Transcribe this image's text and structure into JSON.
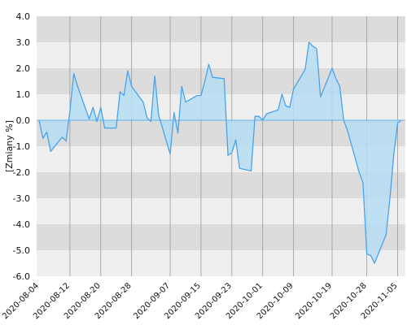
{
  "chart_data": {
    "type": "area",
    "ylabel": "[Zmiany %]",
    "ylim": [
      -6.0,
      4.0
    ],
    "y_ticks": [
      "4.0",
      "3.0",
      "2.0",
      "1.0",
      "0.0",
      "-1.0",
      "-2.0",
      "-3.0",
      "-4.0",
      "-5.0",
      "-6.0"
    ],
    "x_ticks": [
      "2020-08-04",
      "2020-08-12",
      "2020-08-20",
      "2020-08-28",
      "2020-09-07",
      "2020-09-15",
      "2020-09-23",
      "2020-10-01",
      "2020-10-09",
      "2020-10-19",
      "2020-10-28",
      "2020-11-05"
    ],
    "grid": "horizontal bands + vertical lines",
    "colors": {
      "line": "#4aa3ea",
      "fill": "#b5ddf2",
      "band_dark": "#dcdcdc",
      "band_light": "#efefef",
      "grid": "#9a9a9a"
    },
    "series": [
      {
        "x": [
          "2020-08-04",
          "2020-08-05",
          "2020-08-06",
          "2020-08-07",
          "2020-08-10",
          "2020-08-11",
          "2020-08-12",
          "2020-08-13",
          "2020-08-14",
          "2020-08-17",
          "2020-08-18",
          "2020-08-19",
          "2020-08-20",
          "2020-08-21",
          "2020-08-24",
          "2020-08-25",
          "2020-08-26",
          "2020-08-27",
          "2020-08-28",
          "2020-08-31",
          "2020-09-01",
          "2020-09-02",
          "2020-09-03",
          "2020-09-04",
          "2020-09-07",
          "2020-09-08",
          "2020-09-09",
          "2020-09-10",
          "2020-09-11",
          "2020-09-14",
          "2020-09-15",
          "2020-09-16",
          "2020-09-17",
          "2020-09-18",
          "2020-09-21",
          "2020-09-22",
          "2020-09-23",
          "2020-09-24",
          "2020-09-25",
          "2020-09-28",
          "2020-09-29",
          "2020-09-30",
          "2020-10-01",
          "2020-10-02",
          "2020-10-05",
          "2020-10-06",
          "2020-10-07",
          "2020-10-08",
          "2020-10-09",
          "2020-10-12",
          "2020-10-13",
          "2020-10-14",
          "2020-10-15",
          "2020-10-16",
          "2020-10-19",
          "2020-10-20",
          "2020-10-21",
          "2020-10-22",
          "2020-10-23",
          "2020-10-26",
          "2020-10-27",
          "2020-10-28",
          "2020-10-29",
          "2020-10-30",
          "2020-11-02",
          "2020-11-03",
          "2020-11-04",
          "2020-11-05",
          "2020-11-06"
        ],
        "values": [
          0.0,
          -0.7,
          -0.45,
          -1.2,
          -0.65,
          -0.8,
          0.35,
          1.8,
          1.3,
          0.05,
          0.5,
          -0.05,
          0.5,
          -0.3,
          -0.3,
          1.1,
          0.95,
          1.9,
          1.3,
          0.7,
          0.1,
          -0.05,
          1.7,
          0.2,
          -1.3,
          0.3,
          -0.5,
          1.3,
          0.7,
          0.95,
          0.95,
          1.5,
          2.15,
          1.65,
          1.6,
          -1.35,
          -1.25,
          -0.75,
          -1.85,
          -1.95,
          0.15,
          0.15,
          0.0,
          0.25,
          0.4,
          1.0,
          0.55,
          0.5,
          1.2,
          1.95,
          3.0,
          2.85,
          2.75,
          0.9,
          2.0,
          1.6,
          1.3,
          0.0,
          -0.4,
          -2.0,
          -2.4,
          -5.15,
          -5.2,
          -5.5,
          -4.4,
          -3.0,
          -1.3,
          -0.1,
          0.0
        ]
      }
    ]
  }
}
